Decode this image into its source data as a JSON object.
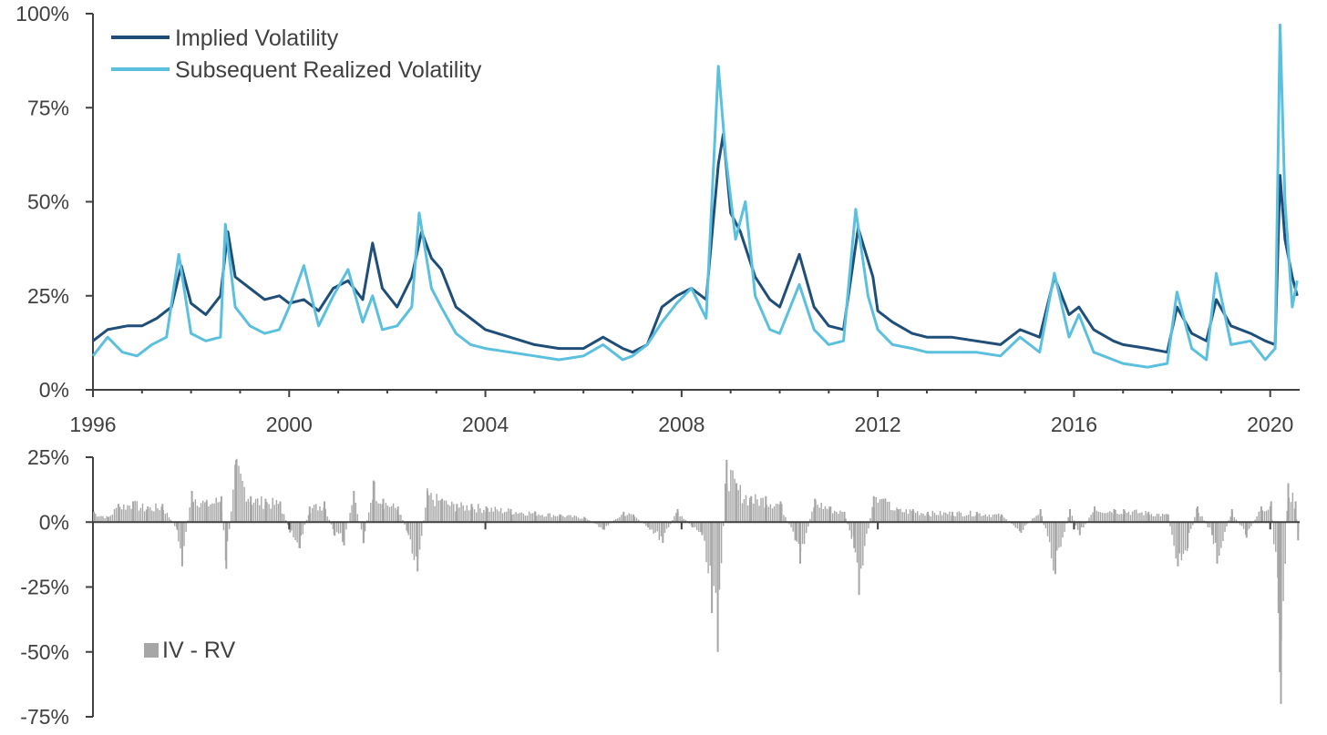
{
  "chart_data": [
    {
      "type": "line",
      "title": "",
      "xlabel": "",
      "ylabel": "",
      "xlim": [
        1996,
        2020.6
      ],
      "ylim": [
        0,
        100
      ],
      "y_ticks": [
        0,
        25,
        50,
        75,
        100
      ],
      "y_tick_labels": [
        "0%",
        "25%",
        "50%",
        "75%",
        "100%"
      ],
      "x_ticks": [
        1996,
        2000,
        2004,
        2008,
        2012,
        2016,
        2020
      ],
      "x_tick_labels": [
        "1996",
        "2000",
        "2004",
        "2008",
        "2012",
        "2016",
        "2020"
      ],
      "grid": false,
      "legend_position": "top-left",
      "legend": [
        "Implied Volatility",
        "Subsequent Realized Volatility"
      ],
      "series": [
        {
          "name": "Implied Volatility",
          "color": "#1f4e79",
          "points": [
            [
              1996.0,
              13
            ],
            [
              1996.3,
              16
            ],
            [
              1996.7,
              17
            ],
            [
              1997.0,
              17
            ],
            [
              1997.3,
              19
            ],
            [
              1997.6,
              22
            ],
            [
              1997.8,
              33
            ],
            [
              1998.0,
              23
            ],
            [
              1998.3,
              20
            ],
            [
              1998.6,
              25
            ],
            [
              1998.75,
              42
            ],
            [
              1998.9,
              30
            ],
            [
              1999.2,
              27
            ],
            [
              1999.5,
              24
            ],
            [
              1999.8,
              25
            ],
            [
              2000.0,
              23
            ],
            [
              2000.3,
              24
            ],
            [
              2000.6,
              21
            ],
            [
              2000.9,
              27
            ],
            [
              2001.2,
              29
            ],
            [
              2001.5,
              24
            ],
            [
              2001.7,
              39
            ],
            [
              2001.9,
              27
            ],
            [
              2002.2,
              22
            ],
            [
              2002.5,
              30
            ],
            [
              2002.7,
              42
            ],
            [
              2002.9,
              35
            ],
            [
              2003.1,
              32
            ],
            [
              2003.4,
              22
            ],
            [
              2003.7,
              19
            ],
            [
              2004.0,
              16
            ],
            [
              2004.5,
              14
            ],
            [
              2005.0,
              12
            ],
            [
              2005.5,
              11
            ],
            [
              2006.0,
              11
            ],
            [
              2006.4,
              14
            ],
            [
              2006.8,
              11
            ],
            [
              2007.0,
              10
            ],
            [
              2007.3,
              12
            ],
            [
              2007.6,
              22
            ],
            [
              2007.9,
              25
            ],
            [
              2008.2,
              27
            ],
            [
              2008.5,
              24
            ],
            [
              2008.75,
              60
            ],
            [
              2008.85,
              68
            ],
            [
              2009.0,
              47
            ],
            [
              2009.2,
              42
            ],
            [
              2009.5,
              30
            ],
            [
              2009.8,
              24
            ],
            [
              2010.0,
              22
            ],
            [
              2010.4,
              36
            ],
            [
              2010.7,
              22
            ],
            [
              2011.0,
              17
            ],
            [
              2011.3,
              16
            ],
            [
              2011.6,
              43
            ],
            [
              2011.9,
              30
            ],
            [
              2012.0,
              21
            ],
            [
              2012.3,
              18
            ],
            [
              2012.7,
              15
            ],
            [
              2013.0,
              14
            ],
            [
              2013.5,
              14
            ],
            [
              2014.0,
              13
            ],
            [
              2014.5,
              12
            ],
            [
              2014.9,
              16
            ],
            [
              2015.3,
              14
            ],
            [
              2015.6,
              30
            ],
            [
              2015.9,
              20
            ],
            [
              2016.1,
              22
            ],
            [
              2016.4,
              16
            ],
            [
              2016.8,
              13
            ],
            [
              2017.0,
              12
            ],
            [
              2017.5,
              11
            ],
            [
              2017.9,
              10
            ],
            [
              2018.1,
              22
            ],
            [
              2018.4,
              15
            ],
            [
              2018.7,
              13
            ],
            [
              2018.9,
              24
            ],
            [
              2019.2,
              17
            ],
            [
              2019.6,
              15
            ],
            [
              2019.9,
              13
            ],
            [
              2020.1,
              12
            ],
            [
              2020.2,
              57
            ],
            [
              2020.3,
              40
            ],
            [
              2020.45,
              30
            ],
            [
              2020.55,
              25
            ]
          ]
        },
        {
          "name": "Subsequent Realized Volatility",
          "color": "#5bc0de",
          "points": [
            [
              1996.0,
              9
            ],
            [
              1996.3,
              14
            ],
            [
              1996.6,
              10
            ],
            [
              1996.9,
              9
            ],
            [
              1997.2,
              12
            ],
            [
              1997.5,
              14
            ],
            [
              1997.75,
              36
            ],
            [
              1998.0,
              15
            ],
            [
              1998.3,
              13
            ],
            [
              1998.6,
              14
            ],
            [
              1998.7,
              44
            ],
            [
              1998.9,
              22
            ],
            [
              1999.2,
              17
            ],
            [
              1999.5,
              15
            ],
            [
              1999.8,
              16
            ],
            [
              2000.0,
              22
            ],
            [
              2000.3,
              33
            ],
            [
              2000.6,
              17
            ],
            [
              2000.9,
              25
            ],
            [
              2001.2,
              32
            ],
            [
              2001.5,
              18
            ],
            [
              2001.7,
              25
            ],
            [
              2001.9,
              16
            ],
            [
              2002.2,
              17
            ],
            [
              2002.5,
              22
            ],
            [
              2002.65,
              47
            ],
            [
              2002.9,
              27
            ],
            [
              2003.1,
              22
            ],
            [
              2003.4,
              15
            ],
            [
              2003.7,
              12
            ],
            [
              2004.0,
              11
            ],
            [
              2004.5,
              10
            ],
            [
              2005.0,
              9
            ],
            [
              2005.5,
              8
            ],
            [
              2006.0,
              9
            ],
            [
              2006.4,
              12
            ],
            [
              2006.8,
              8
            ],
            [
              2007.0,
              9
            ],
            [
              2007.3,
              12
            ],
            [
              2007.6,
              18
            ],
            [
              2007.9,
              23
            ],
            [
              2008.2,
              27
            ],
            [
              2008.5,
              19
            ],
            [
              2008.75,
              86
            ],
            [
              2008.9,
              62
            ],
            [
              2009.1,
              40
            ],
            [
              2009.3,
              50
            ],
            [
              2009.5,
              25
            ],
            [
              2009.8,
              16
            ],
            [
              2010.0,
              15
            ],
            [
              2010.4,
              28
            ],
            [
              2010.7,
              16
            ],
            [
              2011.0,
              12
            ],
            [
              2011.3,
              13
            ],
            [
              2011.55,
              48
            ],
            [
              2011.8,
              25
            ],
            [
              2012.0,
              16
            ],
            [
              2012.3,
              12
            ],
            [
              2012.7,
              11
            ],
            [
              2013.0,
              10
            ],
            [
              2013.5,
              10
            ],
            [
              2014.0,
              10
            ],
            [
              2014.5,
              9
            ],
            [
              2014.9,
              14
            ],
            [
              2015.3,
              10
            ],
            [
              2015.6,
              31
            ],
            [
              2015.9,
              14
            ],
            [
              2016.1,
              20
            ],
            [
              2016.4,
              10
            ],
            [
              2016.8,
              8
            ],
            [
              2017.0,
              7
            ],
            [
              2017.5,
              6
            ],
            [
              2017.9,
              7
            ],
            [
              2018.1,
              26
            ],
            [
              2018.4,
              11
            ],
            [
              2018.7,
              8
            ],
            [
              2018.9,
              31
            ],
            [
              2019.2,
              12
            ],
            [
              2019.6,
              13
            ],
            [
              2019.9,
              8
            ],
            [
              2020.1,
              11
            ],
            [
              2020.2,
              97
            ],
            [
              2020.3,
              50
            ],
            [
              2020.45,
              22
            ],
            [
              2020.55,
              29
            ]
          ]
        }
      ]
    },
    {
      "type": "bar",
      "title": "",
      "xlabel": "",
      "ylabel": "",
      "xlim": [
        1996,
        2020.6
      ],
      "ylim": [
        -75,
        25
      ],
      "y_ticks": [
        -75,
        -50,
        -25,
        0,
        25
      ],
      "y_tick_labels": [
        "-75%",
        "-50%",
        "-25%",
        "0%",
        "25%"
      ],
      "grid": false,
      "legend_position": "bottom-left",
      "legend": [
        "IV - RV"
      ],
      "series": [
        {
          "name": "IV - RV",
          "color": "#a6a6a6",
          "points": [
            [
              1996.0,
              4
            ],
            [
              1996.3,
              2
            ],
            [
              1996.5,
              7
            ],
            [
              1996.8,
              8
            ],
            [
              1997.1,
              6
            ],
            [
              1997.4,
              7
            ],
            [
              1997.7,
              -3
            ],
            [
              1997.8,
              -17
            ],
            [
              1998.0,
              12
            ],
            [
              1998.3,
              8
            ],
            [
              1998.6,
              10
            ],
            [
              1998.7,
              -18
            ],
            [
              1998.9,
              24
            ],
            [
              1999.2,
              10
            ],
            [
              1999.5,
              9
            ],
            [
              1999.8,
              8
            ],
            [
              2000.0,
              -4
            ],
            [
              2000.2,
              -10
            ],
            [
              2000.4,
              6
            ],
            [
              2000.7,
              8
            ],
            [
              2000.9,
              -5
            ],
            [
              2001.1,
              -9
            ],
            [
              2001.3,
              12
            ],
            [
              2001.5,
              -8
            ],
            [
              2001.7,
              16
            ],
            [
              2001.9,
              9
            ],
            [
              2002.2,
              6
            ],
            [
              2002.4,
              -4
            ],
            [
              2002.6,
              -19
            ],
            [
              2002.8,
              12
            ],
            [
              2003.1,
              9
            ],
            [
              2003.4,
              7
            ],
            [
              2003.7,
              7
            ],
            [
              2004.0,
              6
            ],
            [
              2004.5,
              5
            ],
            [
              2005.0,
              4
            ],
            [
              2005.5,
              3
            ],
            [
              2006.0,
              2
            ],
            [
              2006.4,
              -3
            ],
            [
              2006.8,
              4
            ],
            [
              2007.0,
              3
            ],
            [
              2007.3,
              -2
            ],
            [
              2007.6,
              -8
            ],
            [
              2007.9,
              5
            ],
            [
              2008.2,
              -2
            ],
            [
              2008.4,
              -5
            ],
            [
              2008.6,
              -35
            ],
            [
              2008.72,
              -50
            ],
            [
              2008.9,
              24
            ],
            [
              2009.1,
              15
            ],
            [
              2009.4,
              10
            ],
            [
              2009.7,
              10
            ],
            [
              2010.0,
              8
            ],
            [
              2010.3,
              -7
            ],
            [
              2010.4,
              -16
            ],
            [
              2010.7,
              9
            ],
            [
              2011.0,
              6
            ],
            [
              2011.3,
              4
            ],
            [
              2011.5,
              -10
            ],
            [
              2011.6,
              -28
            ],
            [
              2011.9,
              10
            ],
            [
              2012.1,
              9
            ],
            [
              2012.4,
              5
            ],
            [
              2012.7,
              5
            ],
            [
              2013.0,
              4
            ],
            [
              2013.5,
              4
            ],
            [
              2014.0,
              4
            ],
            [
              2014.5,
              3
            ],
            [
              2014.9,
              -4
            ],
            [
              2015.3,
              5
            ],
            [
              2015.6,
              -20
            ],
            [
              2015.9,
              5
            ],
            [
              2016.1,
              -5
            ],
            [
              2016.4,
              6
            ],
            [
              2016.8,
              5
            ],
            [
              2017.0,
              5
            ],
            [
              2017.5,
              4
            ],
            [
              2017.9,
              3
            ],
            [
              2018.1,
              -17
            ],
            [
              2018.3,
              -10
            ],
            [
              2018.5,
              6
            ],
            [
              2018.8,
              -5
            ],
            [
              2018.9,
              -16
            ],
            [
              2019.2,
              5
            ],
            [
              2019.5,
              -6
            ],
            [
              2019.8,
              6
            ],
            [
              2020.0,
              8
            ],
            [
              2020.15,
              -35
            ],
            [
              2020.2,
              -70
            ],
            [
              2020.35,
              15
            ],
            [
              2020.5,
              8
            ],
            [
              2020.55,
              -7
            ]
          ]
        }
      ]
    }
  ]
}
